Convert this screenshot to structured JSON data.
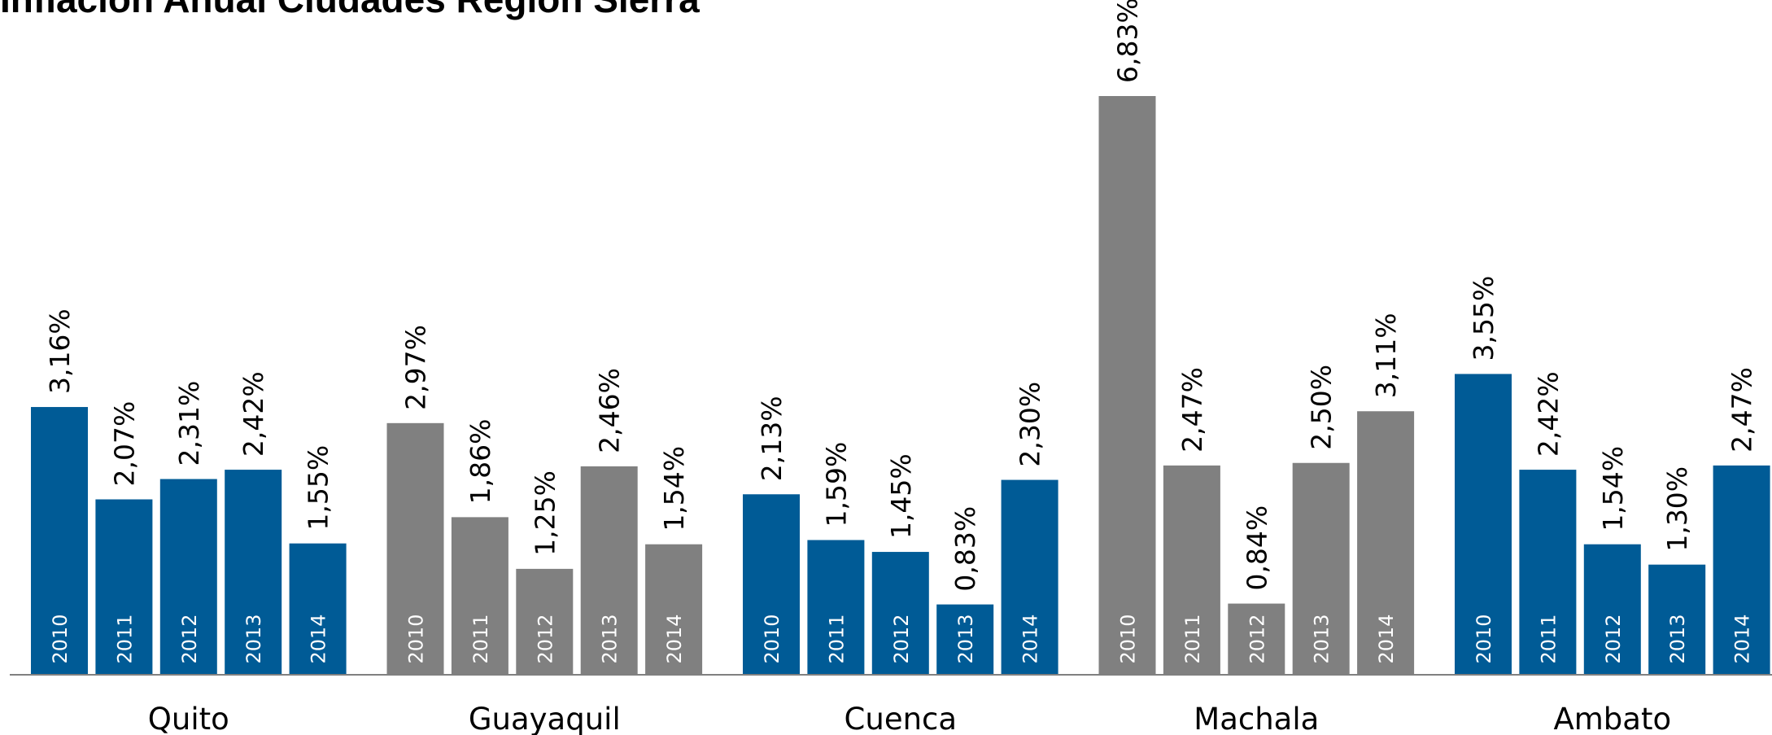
{
  "title": "Inflación Anual Ciudades Región Sierra",
  "chart_data": {
    "type": "bar",
    "ylim": [
      0,
      7.5
    ],
    "grid": false,
    "legend": "none",
    "colors": {
      "blue": "#005b96",
      "gray": "#808080"
    },
    "groups": [
      {
        "city": "Quito",
        "color": "blue",
        "bars": [
          {
            "year": "2010",
            "value": 3.16,
            "label": "3,16%"
          },
          {
            "year": "2011",
            "value": 2.07,
            "label": "2,07%"
          },
          {
            "year": "2012",
            "value": 2.31,
            "label": "2,31%"
          },
          {
            "year": "2013",
            "value": 2.42,
            "label": "2,42%"
          },
          {
            "year": "2014",
            "value": 1.55,
            "label": "1,55%"
          }
        ]
      },
      {
        "city": "Guayaquil",
        "color": "gray",
        "bars": [
          {
            "year": "2010",
            "value": 2.97,
            "label": "2,97%"
          },
          {
            "year": "2011",
            "value": 1.86,
            "label": "1,86%"
          },
          {
            "year": "2012",
            "value": 1.25,
            "label": "1,25%"
          },
          {
            "year": "2013",
            "value": 2.46,
            "label": "2,46%"
          },
          {
            "year": "2014",
            "value": 1.54,
            "label": "1,54%"
          }
        ]
      },
      {
        "city": "Cuenca",
        "color": "blue",
        "bars": [
          {
            "year": "2010",
            "value": 2.13,
            "label": "2,13%"
          },
          {
            "year": "2011",
            "value": 1.59,
            "label": "1,59%"
          },
          {
            "year": "2012",
            "value": 1.45,
            "label": "1,45%"
          },
          {
            "year": "2013",
            "value": 0.83,
            "label": "0,83%"
          },
          {
            "year": "2014",
            "value": 2.3,
            "label": "2,30%"
          }
        ]
      },
      {
        "city": "Machala",
        "color": "gray",
        "bars": [
          {
            "year": "2010",
            "value": 6.83,
            "label": "6,83%"
          },
          {
            "year": "2011",
            "value": 2.47,
            "label": "2,47%"
          },
          {
            "year": "2012",
            "value": 0.84,
            "label": "0,84%"
          },
          {
            "year": "2013",
            "value": 2.5,
            "label": "2,50%"
          },
          {
            "year": "2014",
            "value": 3.11,
            "label": "3,11%"
          }
        ]
      },
      {
        "city": "Ambato",
        "color": "blue",
        "bars": [
          {
            "year": "2010",
            "value": 3.55,
            "label": "3,55%"
          },
          {
            "year": "2011",
            "value": 2.42,
            "label": "2,42%"
          },
          {
            "year": "2012",
            "value": 1.54,
            "label": "1,54%"
          },
          {
            "year": "2013",
            "value": 1.3,
            "label": "1,30%"
          },
          {
            "year": "2014",
            "value": 2.47,
            "label": "2,47%"
          }
        ]
      }
    ]
  }
}
